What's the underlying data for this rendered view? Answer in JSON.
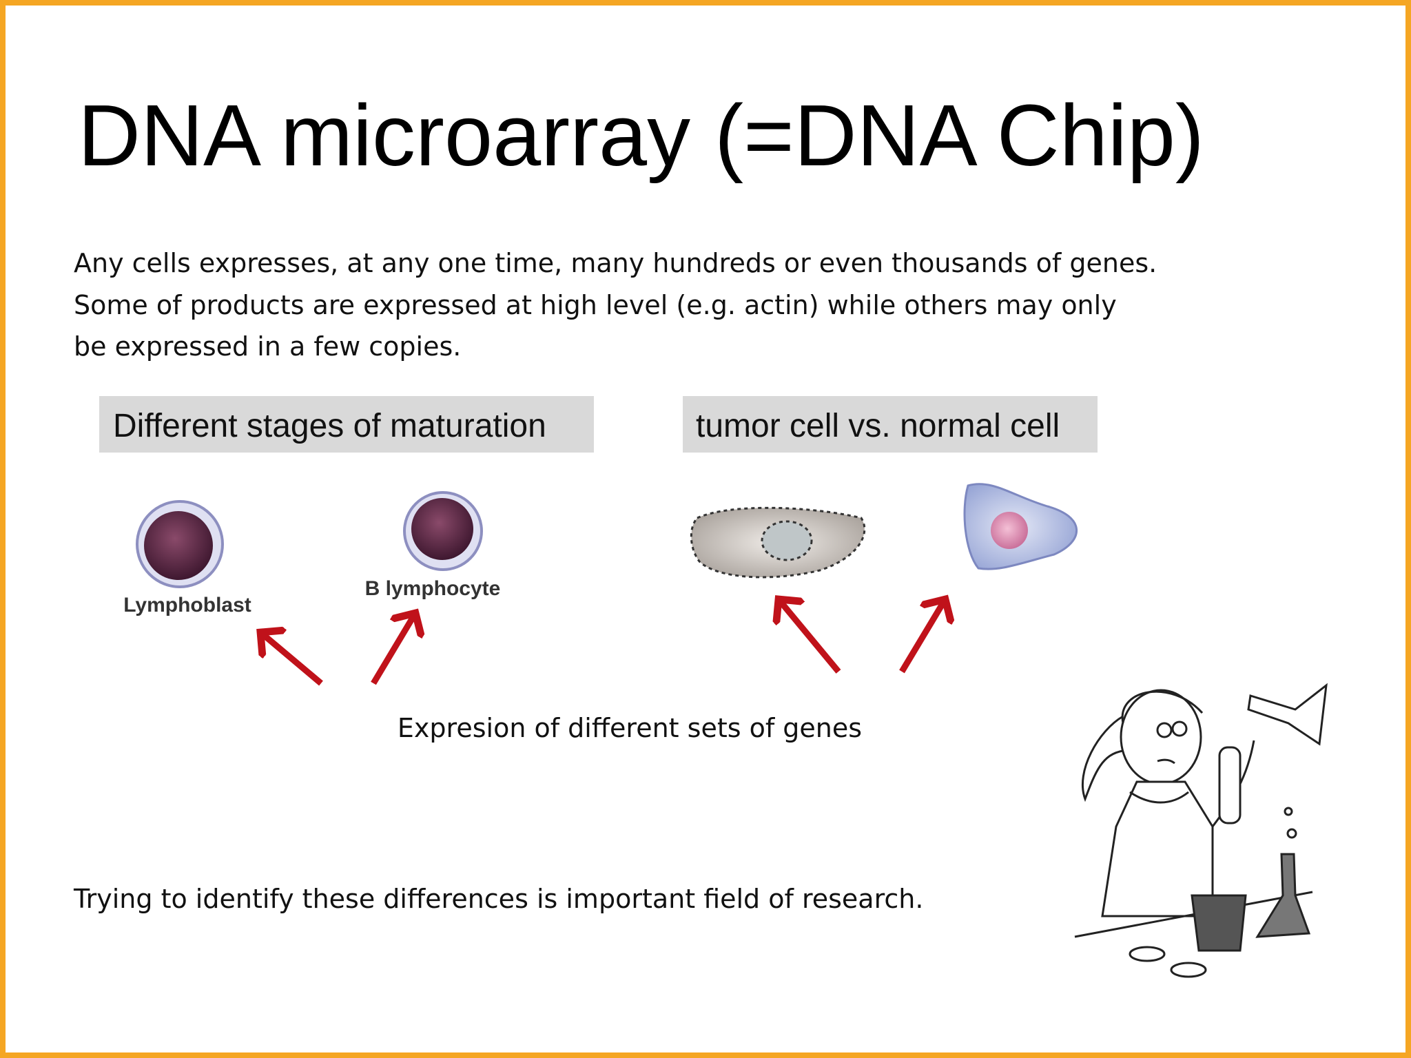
{
  "title": "DNA microarray (=DNA Chip)",
  "intro": {
    "lines": [
      "Any cells expresses, at any one time, many hundreds or even thousands of genes.",
      "Some of products are expressed at high level (e.g. actin) while others may only",
      "be expressed in a few copies."
    ]
  },
  "panels": [
    {
      "label": "Different stages of maturation",
      "cells": [
        "Lymphoblast",
        "B lymphocyte"
      ]
    },
    {
      "label": "tumor cell vs. normal cell"
    }
  ],
  "caption": "Expresion of different sets of genes",
  "conclusion": "Trying to identify these differences is important field of research."
}
